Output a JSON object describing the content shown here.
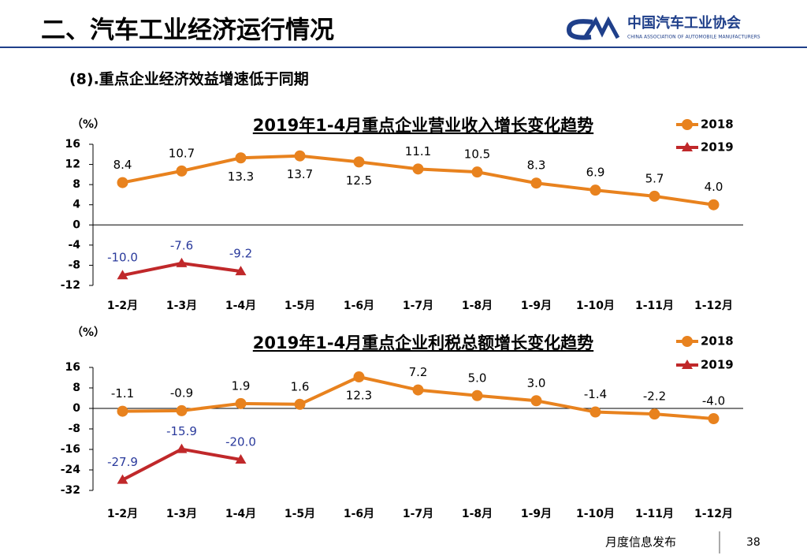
{
  "header": {
    "title": "二、汽车工业经济运行情况",
    "org": "中国汽车工业协会",
    "org_en": "CHINA ASSOCIATION OF AUTOMOBILE MANUFACTURERS"
  },
  "subtitle": "(8).重点企业经济效益增速低于同期",
  "footer": {
    "text": "月度信息发布",
    "page": "38"
  },
  "chart_data": [
    {
      "type": "line",
      "title": "2019年1-4月重点企业营业收入增长变化趋势",
      "y_label": "（%）",
      "categories": [
        "1-2月",
        "1-3月",
        "1-4月",
        "1-5月",
        "1-6月",
        "1-7月",
        "1-8月",
        "1-9月",
        "1-10月",
        "1-11月",
        "1-12月"
      ],
      "ylim": [
        -12,
        16
      ],
      "yticks": [
        -12,
        -8,
        -4,
        0,
        4,
        8,
        12,
        16
      ],
      "series": [
        {
          "name": "2018",
          "color": "#e8821e",
          "marker": "circle",
          "values": [
            8.4,
            10.7,
            13.3,
            13.7,
            12.5,
            11.1,
            10.5,
            8.3,
            6.9,
            5.7,
            4.0
          ],
          "value_labels": [
            "8.4",
            "10.7",
            "13.3",
            "13.7",
            "12.5",
            "11.1",
            "10.5",
            "8.3",
            "6.9",
            "5.7",
            "4.0"
          ]
        },
        {
          "name": "2019",
          "color": "#c0282a",
          "marker": "triangle",
          "values": [
            -10.0,
            -7.6,
            -9.2,
            null,
            null,
            null,
            null,
            null,
            null,
            null,
            null
          ],
          "value_labels": [
            "-10.0",
            "-7.6",
            "-9.2",
            null,
            null,
            null,
            null,
            null,
            null,
            null,
            null
          ]
        }
      ]
    },
    {
      "type": "line",
      "title": "2019年1-4月重点企业利税总额增长变化趋势",
      "y_label": "（%）",
      "categories": [
        "1-2月",
        "1-3月",
        "1-4月",
        "1-5月",
        "1-6月",
        "1-7月",
        "1-8月",
        "1-9月",
        "1-10月",
        "1-11月",
        "1-12月"
      ],
      "ylim": [
        -32,
        16
      ],
      "yticks": [
        -32,
        -24,
        -16,
        -8,
        0,
        8,
        16
      ],
      "series": [
        {
          "name": "2018",
          "color": "#e8821e",
          "marker": "circle",
          "values": [
            -1.1,
            -0.9,
            1.9,
            1.6,
            12.3,
            7.2,
            5.0,
            3.0,
            -1.4,
            -2.2,
            -4.0
          ],
          "value_labels": [
            "-1.1",
            "-0.9",
            "1.9",
            "1.6",
            "12.3",
            "7.2",
            "5.0",
            "3.0",
            "-1.4",
            "-2.2",
            "-4.0"
          ]
        },
        {
          "name": "2019",
          "color": "#c0282a",
          "marker": "triangle",
          "values": [
            -27.9,
            -15.9,
            -20.0,
            null,
            null,
            null,
            null,
            null,
            null,
            null,
            null
          ],
          "value_labels": [
            "-27.9",
            "-15.9",
            "-20.0",
            null,
            null,
            null,
            null,
            null,
            null,
            null,
            null
          ]
        }
      ]
    }
  ]
}
